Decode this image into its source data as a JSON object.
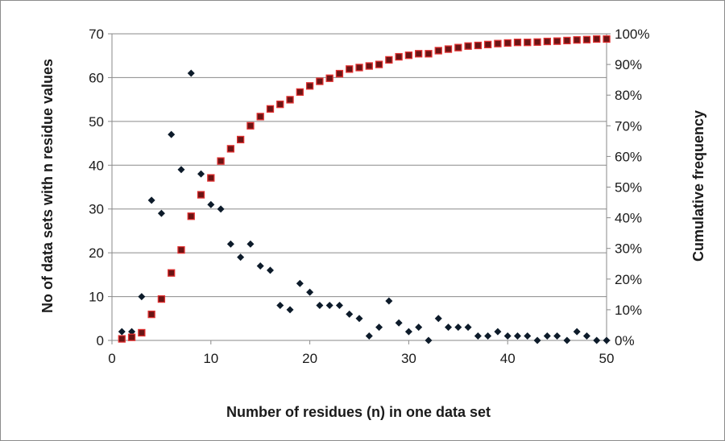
{
  "chart_data": {
    "type": "scatter",
    "title": "",
    "xlabel": "Number of residues  (n) in one data set",
    "ylabel": "No of data sets with n residue values",
    "y2label": "Cumulative frequency",
    "xlim": [
      0,
      50
    ],
    "ylim": [
      0,
      70
    ],
    "y2lim": [
      0,
      1
    ],
    "x_ticks": [
      "0",
      "10",
      "20",
      "30",
      "40",
      "50"
    ],
    "y_ticks": [
      "0",
      "10",
      "20",
      "30",
      "40",
      "50",
      "60",
      "70"
    ],
    "y2_ticks": [
      "0%",
      "10%",
      "20%",
      "30%",
      "40%",
      "50%",
      "60%",
      "70%",
      "80%",
      "90%",
      "100%"
    ],
    "grid": true,
    "legend": "none",
    "series": [
      {
        "axis": "left",
        "marker": "diamond",
        "color": "#0d1b2a",
        "x": [
          1,
          2,
          3,
          4,
          5,
          6,
          7,
          8,
          9,
          10,
          11,
          12,
          13,
          14,
          15,
          16,
          17,
          18,
          19,
          20,
          21,
          22,
          23,
          24,
          25,
          26,
          27,
          28,
          29,
          30,
          31,
          32,
          33,
          34,
          35,
          36,
          37,
          38,
          39,
          40,
          41,
          42,
          43,
          44,
          45,
          46,
          47,
          48,
          49,
          50
        ],
        "values": [
          2,
          2,
          10,
          32,
          29,
          47,
          39,
          61,
          38,
          31,
          30,
          22,
          19,
          22,
          17,
          16,
          8,
          7,
          13,
          11,
          8,
          8,
          8,
          6,
          5,
          1,
          3,
          9,
          4,
          2,
          3,
          0,
          5,
          3,
          3,
          3,
          1,
          1,
          2,
          1,
          1,
          1,
          0,
          1,
          1,
          0,
          2,
          1,
          0,
          0
        ]
      },
      {
        "axis": "right",
        "marker": "square",
        "color": "#6b1414",
        "edge_color": "#e03030",
        "x": [
          1,
          2,
          3,
          4,
          5,
          6,
          7,
          8,
          9,
          10,
          11,
          12,
          13,
          14,
          15,
          16,
          17,
          18,
          19,
          20,
          21,
          22,
          23,
          24,
          25,
          26,
          27,
          28,
          29,
          30,
          31,
          32,
          33,
          34,
          35,
          36,
          37,
          38,
          39,
          40,
          41,
          42,
          43,
          44,
          45,
          46,
          47,
          48,
          49,
          50
        ],
        "values": [
          0.005,
          0.01,
          0.025,
          0.085,
          0.135,
          0.22,
          0.295,
          0.405,
          0.475,
          0.53,
          0.585,
          0.625,
          0.655,
          0.7,
          0.73,
          0.755,
          0.77,
          0.785,
          0.81,
          0.83,
          0.845,
          0.855,
          0.87,
          0.885,
          0.89,
          0.895,
          0.9,
          0.915,
          0.925,
          0.93,
          0.935,
          0.935,
          0.945,
          0.95,
          0.955,
          0.96,
          0.962,
          0.965,
          0.968,
          0.97,
          0.972,
          0.972,
          0.973,
          0.975,
          0.976,
          0.978,
          0.98,
          0.981,
          0.983,
          0.983
        ]
      }
    ]
  }
}
